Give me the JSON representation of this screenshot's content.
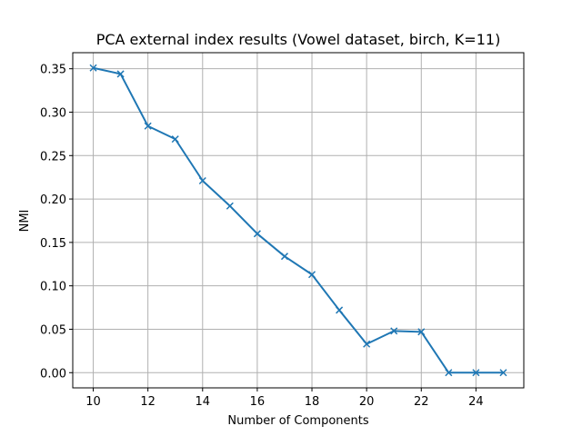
{
  "chart_data": {
    "type": "line",
    "title": "PCA external index results (Vowel dataset, birch, K=11)",
    "xlabel": "Number of Components",
    "ylabel": "NMI",
    "x": [
      10,
      11,
      12,
      13,
      14,
      15,
      16,
      17,
      18,
      19,
      20,
      21,
      22,
      23,
      24,
      25
    ],
    "series": [
      {
        "values": [
          0.351,
          0.344,
          0.284,
          0.269,
          0.221,
          0.192,
          0.16,
          0.134,
          0.113,
          0.072,
          0.033,
          0.048,
          0.047,
          0.0,
          0.0,
          0.0
        ],
        "color": "#1f77b4",
        "marker": "x"
      }
    ],
    "xlim": [
      9.25,
      25.75
    ],
    "ylim": [
      -0.0175,
      0.3685
    ],
    "xticks": [
      10,
      12,
      14,
      16,
      18,
      20,
      22,
      24
    ],
    "yticks": [
      "0.00",
      "0.05",
      "0.10",
      "0.15",
      "0.20",
      "0.25",
      "0.30",
      "0.35"
    ],
    "grid": true
  }
}
